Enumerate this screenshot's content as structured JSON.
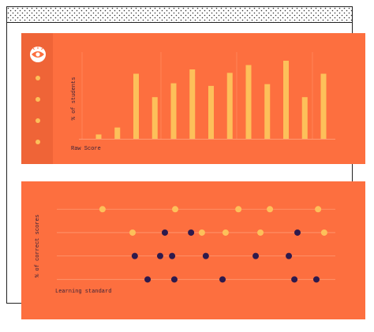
{
  "chart_data": [
    {
      "type": "bar",
      "y_label": "% of students",
      "x_label": "Raw Score",
      "values": [
        5,
        13,
        75,
        48,
        64,
        80,
        61,
        76,
        85,
        63,
        90,
        48,
        75
      ],
      "color": "#fdc05a",
      "ylim": [
        0,
        100
      ]
    },
    {
      "type": "scatter",
      "y_label": "% of correct scores",
      "x_label": "Learning standard",
      "xlim": [
        0,
        100
      ],
      "ylim": [
        0,
        5
      ],
      "yticks": [
        1,
        2,
        3,
        4
      ],
      "grid": true,
      "series": [
        {
          "color": "#fdc05a",
          "x": [
            16.4,
            42.5,
            65.2,
            76.5,
            93.8,
            27.2,
            52.1,
            60.6,
            73.1,
            96.0
          ],
          "values": [
            4,
            4,
            4,
            4,
            4,
            3,
            3,
            3,
            3,
            3
          ]
        },
        {
          "color": "#2e1a4d",
          "x": [
            38.8,
            48.2,
            86.4,
            28.0,
            37.1,
            41.4,
            53.5,
            71.4,
            83.3,
            32.6,
            42.2,
            59.5,
            85.3,
            93.2
          ],
          "values": [
            3,
            3,
            3,
            2,
            2,
            2,
            2,
            2,
            2,
            1,
            1,
            1,
            1,
            1
          ]
        }
      ]
    }
  ]
}
